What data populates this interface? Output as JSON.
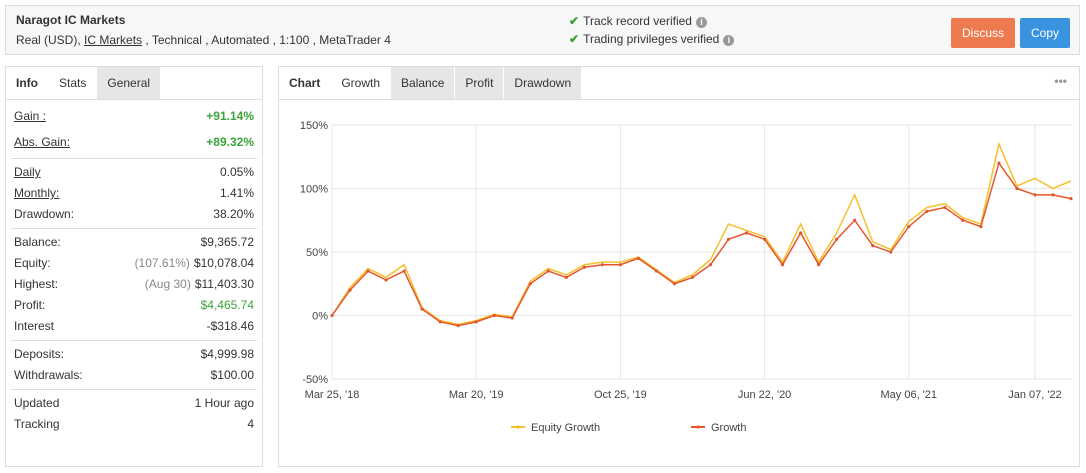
{
  "header": {
    "title": "Naragot IC Markets",
    "subtitle": [
      "Real (USD),",
      "IC Markets",
      ", Technical , Automated , 1:100 , MetaTrader 4"
    ],
    "verified": [
      "Track record verified",
      "Trading privileges verified"
    ],
    "buttons": [
      "Discuss",
      "Copy"
    ]
  },
  "left_tabs": [
    "Info",
    "Stats",
    "General"
  ],
  "stats": [
    [
      {
        "label": "Gain :",
        "value": "+91.14%"
      },
      {
        "label": "Abs. Gain:",
        "value": "+89.32%"
      }
    ],
    [
      {
        "label": "Daily",
        "value": "0.05%"
      },
      {
        "label": "Monthly:",
        "value": "1.41%"
      },
      {
        "label": "Drawdown:",
        "value": "38.20%"
      }
    ],
    [
      {
        "label": "Balance:",
        "value": "$9,365.72"
      },
      {
        "label": "Equity:",
        "note": "(107.61%)",
        "value": "$10,078.04"
      },
      {
        "label": "Highest:",
        "note": "(Aug 30)",
        "value": "$11,403.30"
      },
      {
        "label": "Profit:",
        "value": "$4,465.74"
      },
      {
        "label": "Interest",
        "value": "-$318.46"
      }
    ],
    [
      {
        "label": "Deposits:",
        "value": "$4,999.98"
      },
      {
        "label": "Withdrawals:",
        "value": "$100.00"
      }
    ],
    [
      {
        "label": "Updated",
        "value": "1 Hour ago"
      },
      {
        "label": "Tracking",
        "value": "4"
      }
    ]
  ],
  "chart_tabs": [
    "Chart",
    "Growth",
    "Balance",
    "Profit",
    "Drawdown"
  ],
  "chart_data": {
    "type": "line",
    "categories": [
      "Mar 25, '18",
      null,
      null,
      null,
      null,
      null,
      null,
      null,
      "Mar 20, '19",
      null,
      null,
      null,
      null,
      null,
      null,
      null,
      "Oct 25, '19",
      null,
      null,
      null,
      null,
      null,
      null,
      null,
      "Jun 22, '20",
      null,
      null,
      null,
      null,
      null,
      null,
      null,
      "May 06, '21",
      null,
      null,
      null,
      null,
      null,
      null,
      "Jan 07, '22",
      null,
      null
    ],
    "series": [
      {
        "name": "Equity Growth",
        "color": "#f5c02a",
        "values": [
          0,
          22,
          37,
          30,
          40,
          6,
          -4,
          -7,
          -4,
          1,
          -1,
          27,
          37,
          32,
          40,
          42,
          42,
          46,
          36,
          26,
          32,
          44,
          72,
          67,
          62,
          42,
          72,
          42,
          65,
          95,
          58,
          52,
          74,
          85,
          88,
          77,
          72,
          135,
          102,
          108,
          100,
          106
        ]
      },
      {
        "name": "Growth",
        "color": "#e4572e",
        "values": [
          0,
          20,
          35,
          28,
          35,
          5,
          -5,
          -8,
          -5,
          0,
          -2,
          25,
          35,
          30,
          38,
          40,
          40,
          45,
          35,
          25,
          30,
          40,
          60,
          65,
          60,
          40,
          65,
          40,
          60,
          75,
          55,
          50,
          70,
          82,
          85,
          75,
          70,
          120,
          100,
          95,
          95,
          92
        ]
      }
    ],
    "ylim": [
      -50,
      150
    ],
    "yticks": [
      {
        "value": -50,
        "label": "-50%"
      },
      {
        "value": 0,
        "label": "0%"
      },
      {
        "value": 50,
        "label": "50%"
      },
      {
        "value": 100,
        "label": "100%"
      },
      {
        "value": 150,
        "label": "150%"
      }
    ],
    "grid": true
  }
}
